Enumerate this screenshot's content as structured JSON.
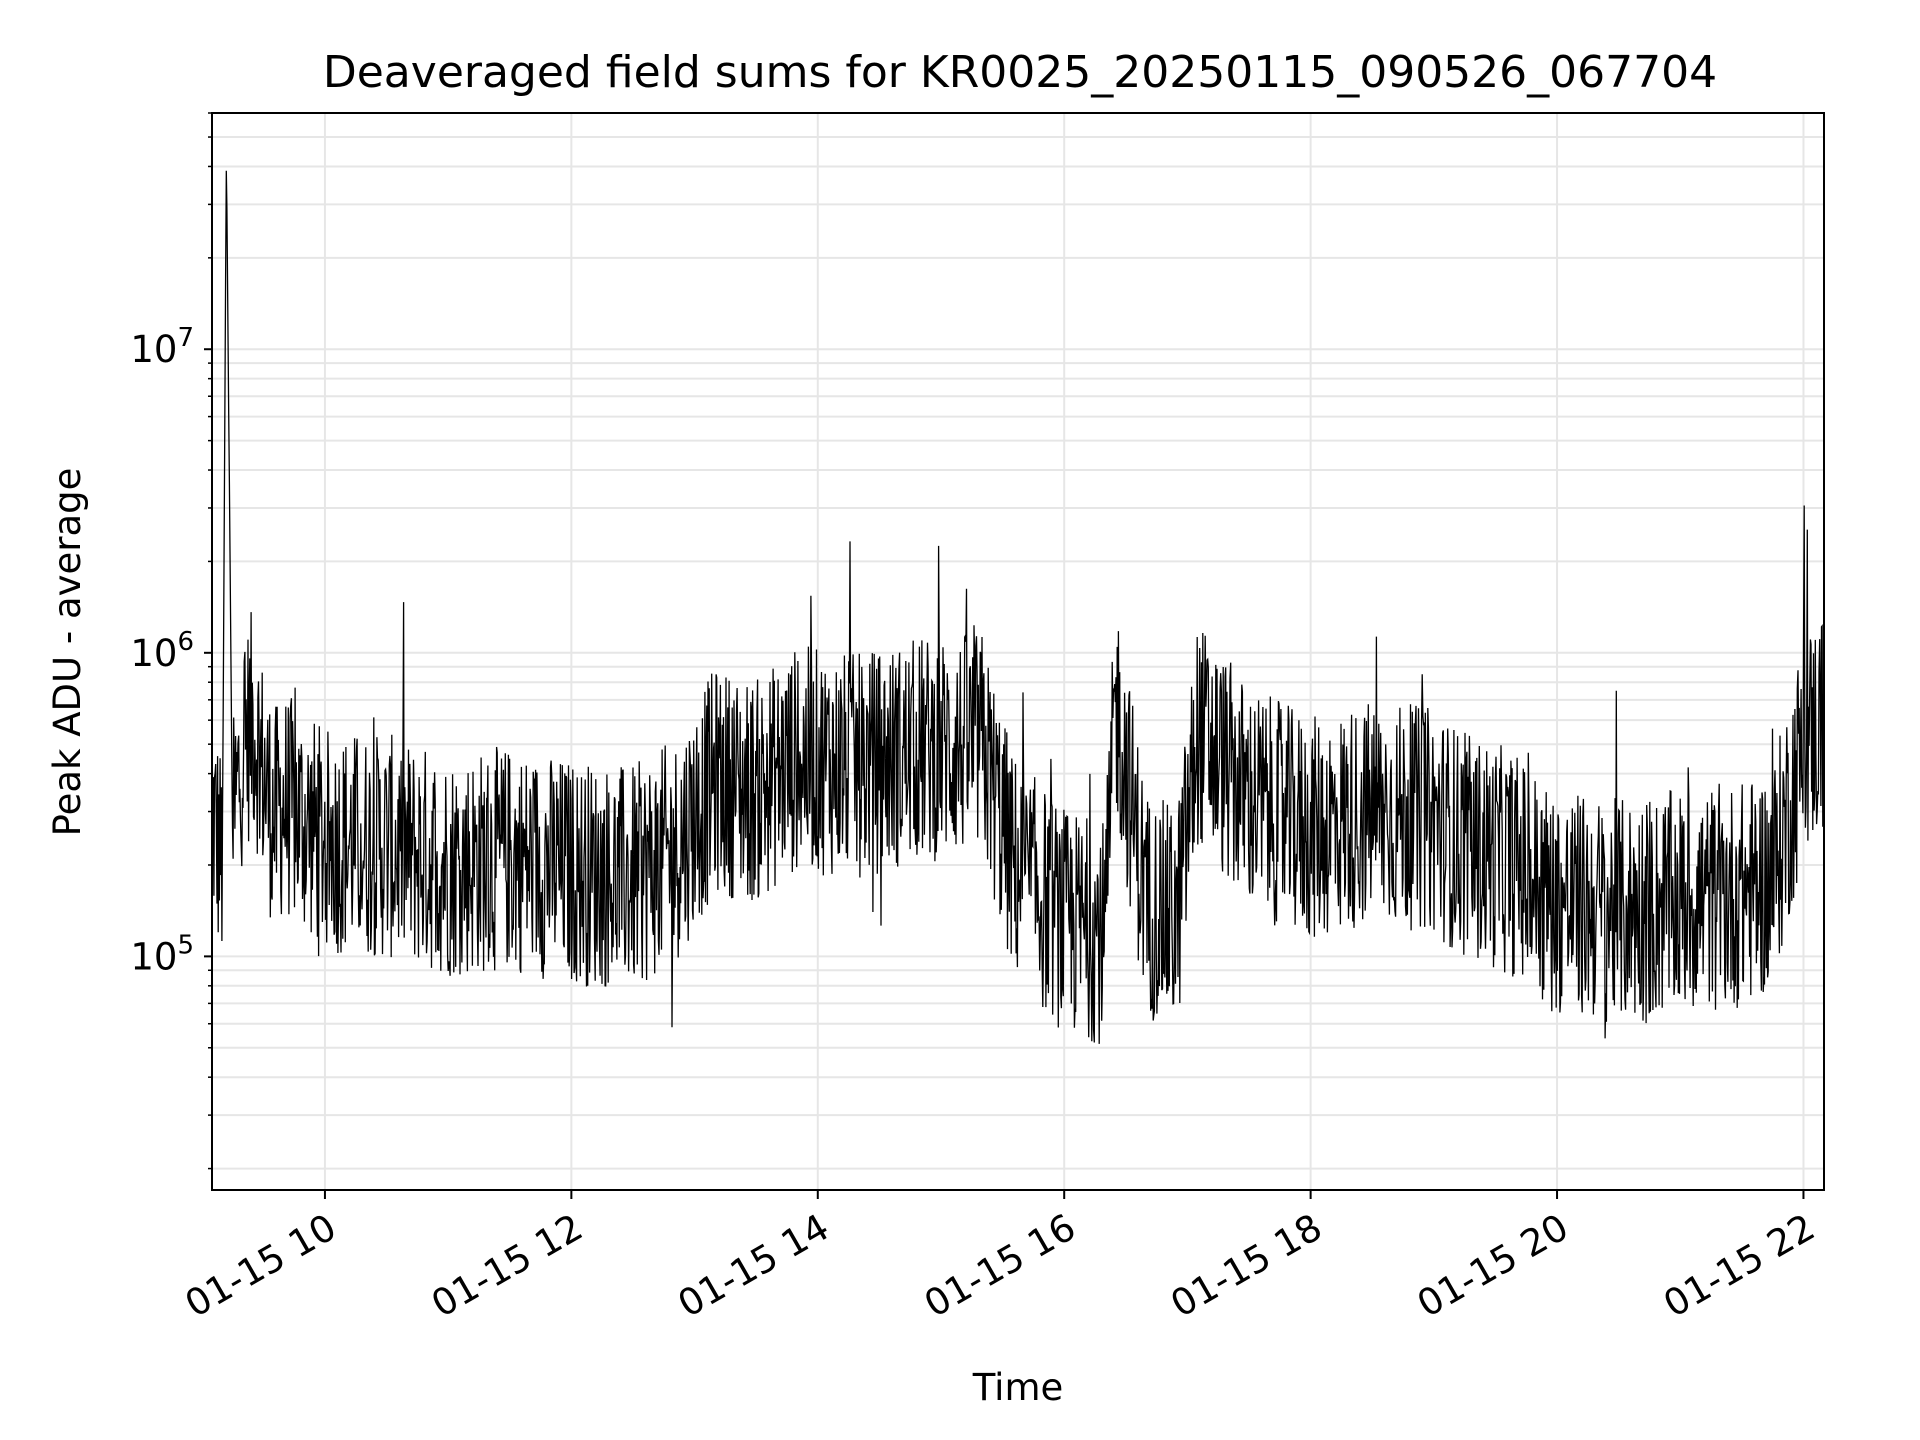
{
  "chart_data": {
    "type": "line",
    "title": "Deaveraged field sums for KR0025_20250115_090526_067704",
    "xlabel": "Time",
    "ylabel": "Peak ADU - average",
    "x_tick_labels": [
      "01-15 10",
      "01-15 12",
      "01-15 14",
      "01-15 16",
      "01-15 18",
      "01-15 20",
      "01-15 22"
    ],
    "y_tick_labels": [
      {
        "base": "10",
        "exp": "5"
      },
      {
        "base": "10",
        "exp": "6"
      },
      {
        "base": "10",
        "exp": "7"
      }
    ],
    "y_scale": "log",
    "xlim": [
      "2025-01-15 09:05",
      "2025-01-15 22:10"
    ],
    "ylim": [
      17000,
      60000000
    ],
    "grid": true,
    "line_color": "#000000",
    "grid_color": "#e6e6e6",
    "series": [
      {
        "x": [
          "2025-01-15 09:05",
          "2025-01-15 09:10",
          "2025-01-15 09:12",
          "2025-01-15 09:15",
          "2025-01-15 09:20",
          "2025-01-15 09:25",
          "2025-01-15 09:30",
          "2025-01-15 09:35",
          "2025-01-15 09:40",
          "2025-01-15 10:00",
          "2025-01-15 10:30",
          "2025-01-15 11:00",
          "2025-01-15 11:30",
          "2025-01-15 12:00",
          "2025-01-15 12:30",
          "2025-01-15 12:50",
          "2025-01-15 13:10",
          "2025-01-15 13:30",
          "2025-01-15 13:50",
          "2025-01-15 14:20",
          "2025-01-15 14:50",
          "2025-01-15 15:20",
          "2025-01-15 15:35",
          "2025-01-15 16:00",
          "2025-01-15 16:20",
          "2025-01-15 16:25",
          "2025-01-15 16:40",
          "2025-01-15 16:55",
          "2025-01-15 17:05",
          "2025-01-15 17:30",
          "2025-01-15 18:00",
          "2025-01-15 18:30",
          "2025-01-15 19:00",
          "2025-01-15 19:15",
          "2025-01-15 19:25",
          "2025-01-15 19:40",
          "2025-01-15 20:00",
          "2025-01-15 20:30",
          "2025-01-15 21:00",
          "2025-01-15 21:30",
          "2025-01-15 21:45",
          "2025-01-15 22:00",
          "2025-01-15 22:10"
        ],
        "y": [
          300000,
          200000,
          45000000,
          250000,
          500000,
          600000,
          400000,
          280000,
          320000,
          240000,
          230000,
          200000,
          210000,
          190000,
          180000,
          220000,
          380000,
          350000,
          450000,
          420000,
          480000,
          500000,
          200000,
          130000,
          120000,
          700000,
          150000,
          130000,
          550000,
          330000,
          260000,
          300000,
          280000,
          230000,
          220000,
          200000,
          150000,
          140000,
          150000,
          160000,
          180000,
          500000,
          600000
        ]
      }
    ]
  }
}
